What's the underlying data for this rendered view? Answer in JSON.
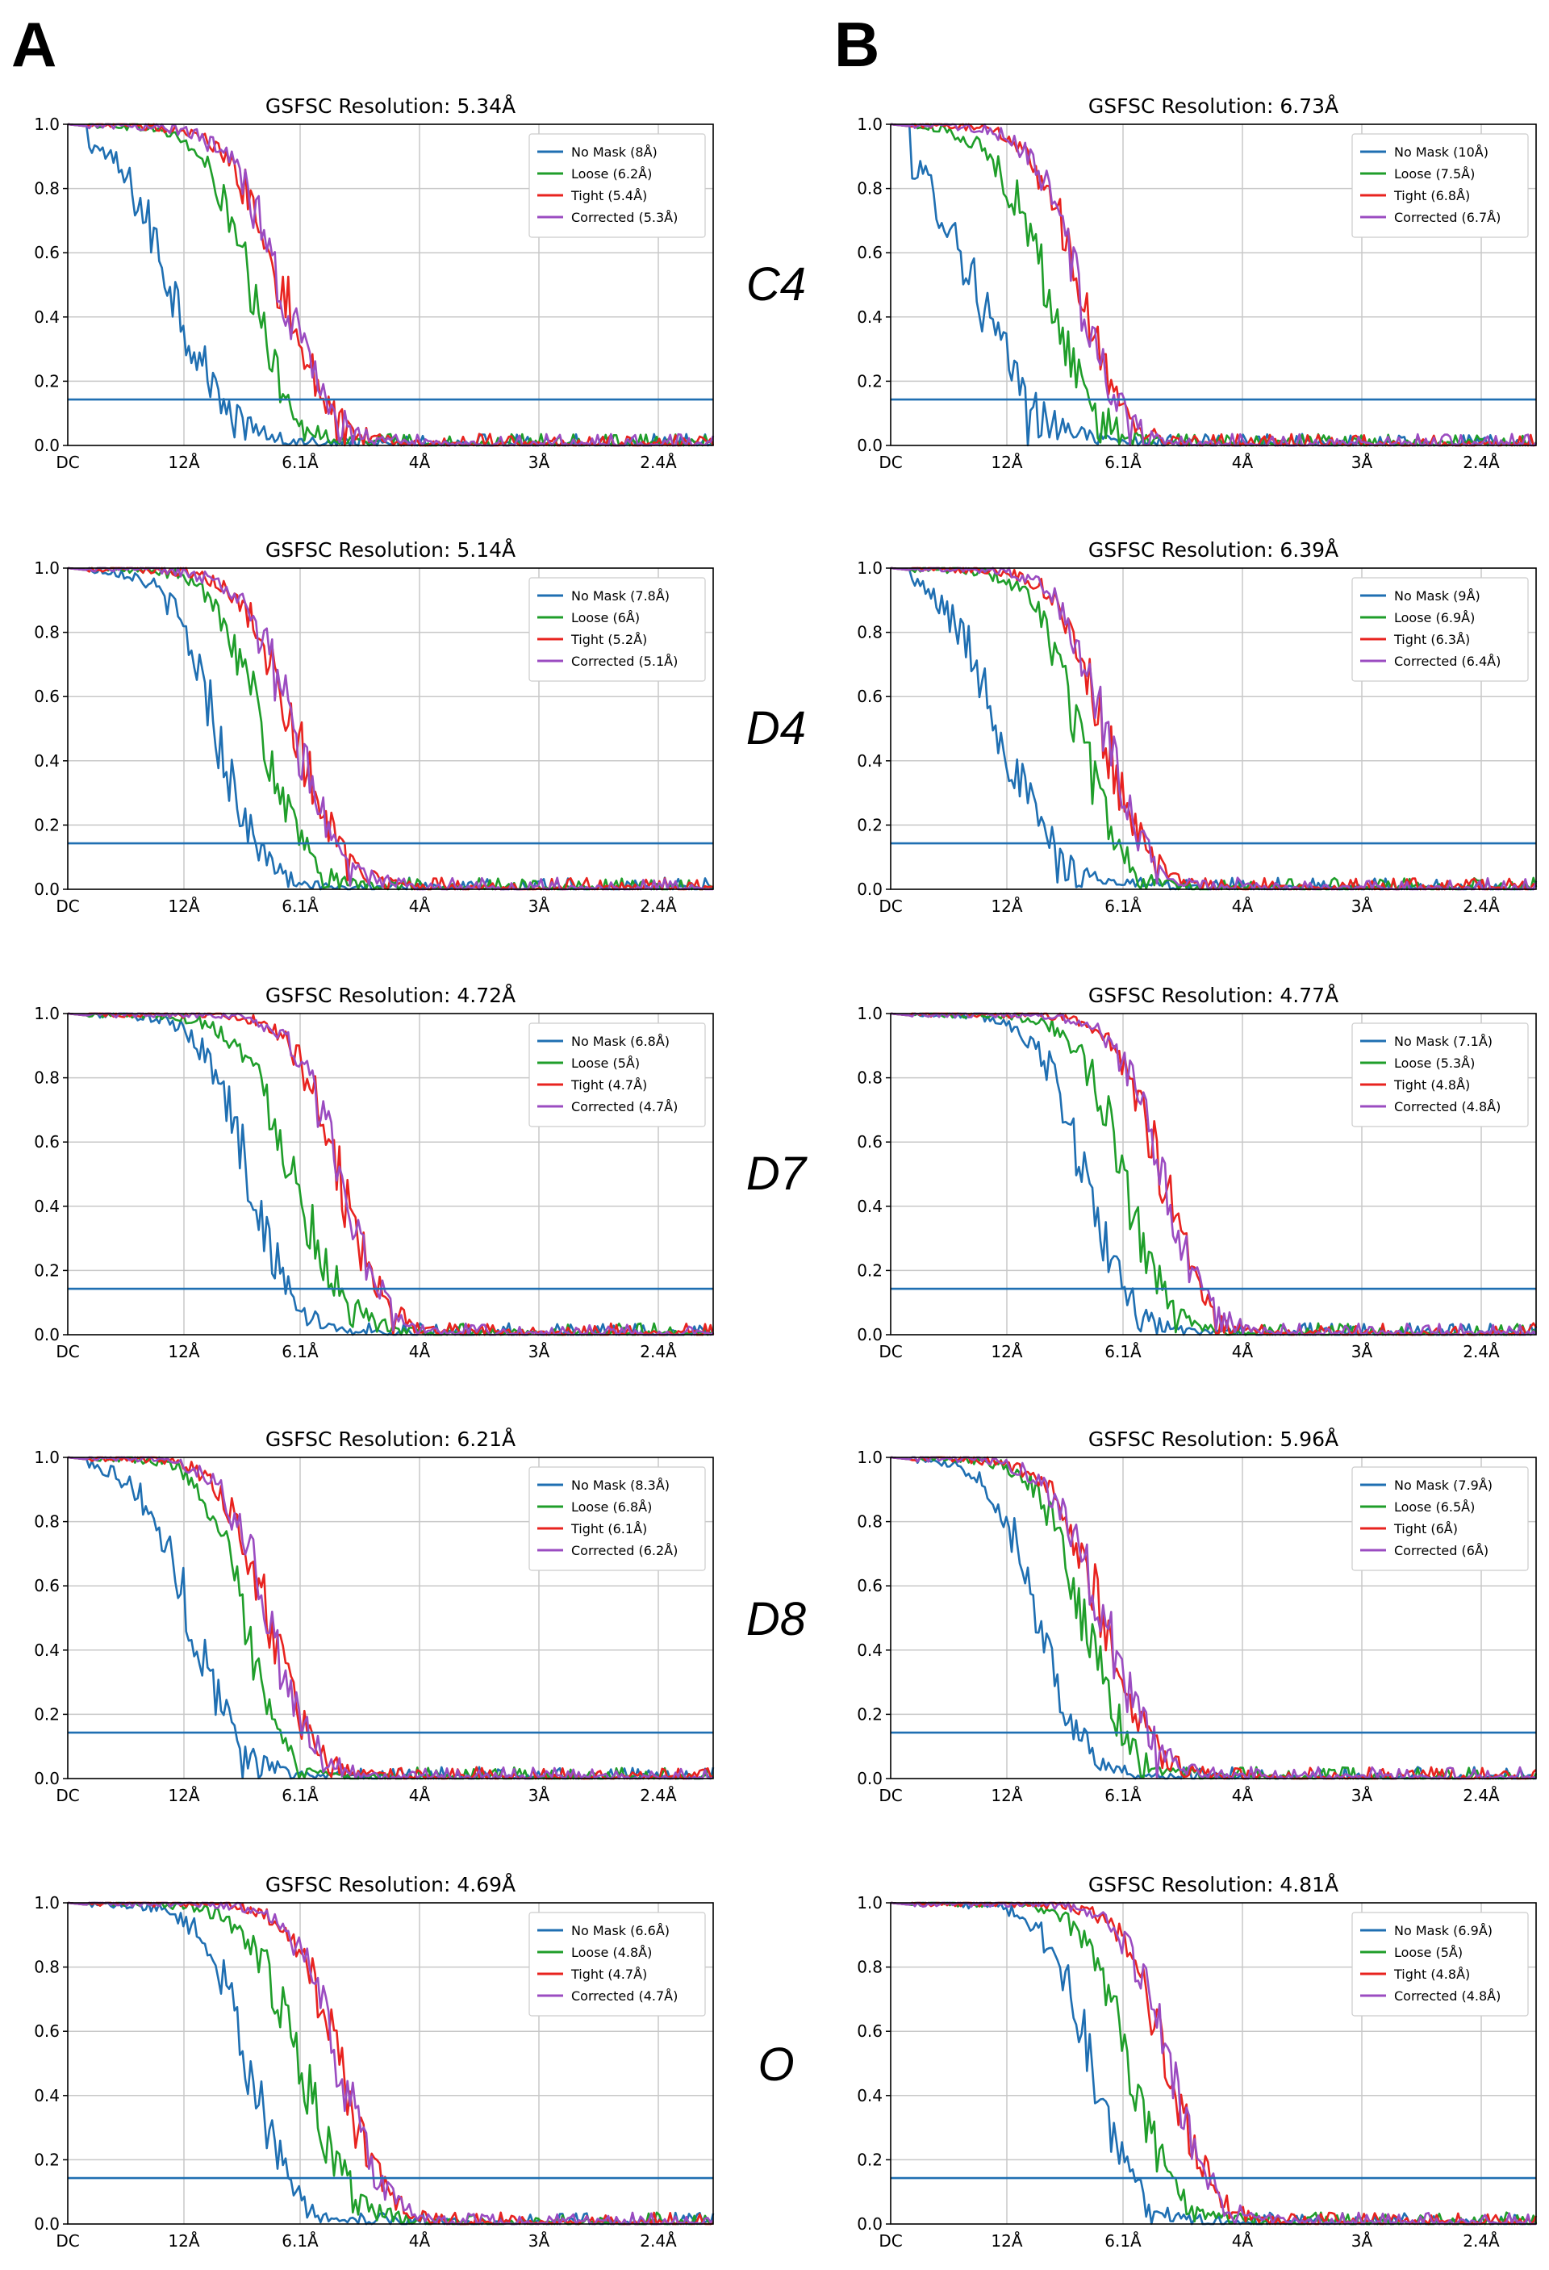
{
  "panel_labels": [
    "A",
    "B"
  ],
  "row_labels": [
    "C4",
    "D4",
    "D7",
    "D8",
    "O"
  ],
  "colors": {
    "no_mask": "#1f6fb2",
    "loose": "#1f9e2a",
    "tight": "#e8231f",
    "corrected": "#9b4cc1",
    "threshold": "#1f6fb2",
    "grid": "#c8c8c8",
    "axis": "#000000"
  },
  "chart_data": [
    {
      "type": "line",
      "title": "GSFSC Resolution: 5.34Å",
      "xlabel": "",
      "ylabel": "",
      "x_ticks": [
        "DC",
        "12Å",
        "6.1Å",
        "4Å",
        "3Å",
        "2.4Å"
      ],
      "y_ticks": [
        "0.0",
        "0.2",
        "0.4",
        "0.6",
        "0.8",
        "1.0"
      ],
      "ylim": [
        0,
        1.0
      ],
      "threshold": 0.143,
      "legend_position": "top-right",
      "series": [
        {
          "name": "No Mask (8Å)",
          "key": "no_mask",
          "half": 0.16,
          "width": 0.045
        },
        {
          "name": "Loose (6.2Å)",
          "key": "loose",
          "half": 0.28,
          "width": 0.035
        },
        {
          "name": "Tight (5.4Å)",
          "key": "tight",
          "half": 0.33,
          "width": 0.04
        },
        {
          "name": "Corrected (5.3Å)",
          "key": "corrected",
          "half": 0.33,
          "width": 0.04
        }
      ]
    },
    {
      "type": "line",
      "title": "GSFSC Resolution: 6.73Å",
      "xlabel": "",
      "ylabel": "",
      "x_ticks": [
        "DC",
        "12Å",
        "6.1Å",
        "4Å",
        "3Å",
        "2.4Å"
      ],
      "y_ticks": [
        "0.0",
        "0.2",
        "0.4",
        "0.6",
        "0.8",
        "1.0"
      ],
      "ylim": [
        0,
        1.0
      ],
      "threshold": 0.143,
      "legend_position": "top-right",
      "series": [
        {
          "name": "No Mask (10Å)",
          "key": "no_mask",
          "half": 0.13,
          "width": 0.05
        },
        {
          "name": "Loose (7.5Å)",
          "key": "loose",
          "half": 0.24,
          "width": 0.04
        },
        {
          "name": "Tight (6.8Å)",
          "key": "tight",
          "half": 0.29,
          "width": 0.035
        },
        {
          "name": "Corrected (6.7Å)",
          "key": "corrected",
          "half": 0.29,
          "width": 0.035
        }
      ]
    },
    {
      "type": "line",
      "title": "GSFSC Resolution: 5.14Å",
      "xlabel": "",
      "ylabel": "",
      "x_ticks": [
        "DC",
        "12Å",
        "6.1Å",
        "4Å",
        "3Å",
        "2.4Å"
      ],
      "y_ticks": [
        "0.0",
        "0.2",
        "0.4",
        "0.6",
        "0.8",
        "1.0"
      ],
      "ylim": [
        0,
        1.0
      ],
      "threshold": 0.143,
      "legend_position": "top-right",
      "series": [
        {
          "name": "No Mask (7.8Å)",
          "key": "no_mask",
          "half": 0.23,
          "width": 0.035
        },
        {
          "name": "Loose (6Å)",
          "key": "loose",
          "half": 0.3,
          "width": 0.035
        },
        {
          "name": "Tight (5.2Å)",
          "key": "tight",
          "half": 0.35,
          "width": 0.04
        },
        {
          "name": "Corrected (5.1Å)",
          "key": "corrected",
          "half": 0.35,
          "width": 0.04
        }
      ]
    },
    {
      "type": "line",
      "title": "GSFSC Resolution: 6.39Å",
      "xlabel": "",
      "ylabel": "",
      "x_ticks": [
        "DC",
        "12Å",
        "6.1Å",
        "4Å",
        "3Å",
        "2.4Å"
      ],
      "y_ticks": [
        "0.0",
        "0.2",
        "0.4",
        "0.6",
        "0.8",
        "1.0"
      ],
      "ylim": [
        0,
        1.0
      ],
      "threshold": 0.143,
      "legend_position": "top-right",
      "series": [
        {
          "name": "No Mask (9Å)",
          "key": "no_mask",
          "half": 0.17,
          "width": 0.045
        },
        {
          "name": "Loose (6.9Å)",
          "key": "loose",
          "half": 0.29,
          "width": 0.035
        },
        {
          "name": "Tight (6.3Å)",
          "key": "tight",
          "half": 0.33,
          "width": 0.035
        },
        {
          "name": "Corrected (6.4Å)",
          "key": "corrected",
          "half": 0.33,
          "width": 0.035
        }
      ]
    },
    {
      "type": "line",
      "title": "GSFSC Resolution: 4.72Å",
      "xlabel": "",
      "ylabel": "",
      "x_ticks": [
        "DC",
        "12Å",
        "6.1Å",
        "4Å",
        "3Å",
        "2.4Å"
      ],
      "y_ticks": [
        "0.0",
        "0.2",
        "0.4",
        "0.6",
        "0.8",
        "1.0"
      ],
      "ylim": [
        0,
        1.0
      ],
      "threshold": 0.143,
      "legend_position": "top-right",
      "series": [
        {
          "name": "No Mask (6.8Å)",
          "key": "no_mask",
          "half": 0.28,
          "width": 0.035
        },
        {
          "name": "Loose (5Å)",
          "key": "loose",
          "half": 0.35,
          "width": 0.04
        },
        {
          "name": "Tight (4.7Å)",
          "key": "tight",
          "half": 0.42,
          "width": 0.035
        },
        {
          "name": "Corrected (4.7Å)",
          "key": "corrected",
          "half": 0.42,
          "width": 0.035
        }
      ]
    },
    {
      "type": "line",
      "title": "GSFSC Resolution: 4.77Å",
      "xlabel": "",
      "ylabel": "",
      "x_ticks": [
        "DC",
        "12Å",
        "6.1Å",
        "4Å",
        "3Å",
        "2.4Å"
      ],
      "y_ticks": [
        "0.0",
        "0.2",
        "0.4",
        "0.6",
        "0.8",
        "1.0"
      ],
      "ylim": [
        0,
        1.0
      ],
      "threshold": 0.143,
      "legend_position": "top-right",
      "series": [
        {
          "name": "No Mask (7.1Å)",
          "key": "no_mask",
          "half": 0.3,
          "width": 0.035
        },
        {
          "name": "Loose (5.3Å)",
          "key": "loose",
          "half": 0.36,
          "width": 0.035
        },
        {
          "name": "Tight (4.8Å)",
          "key": "tight",
          "half": 0.42,
          "width": 0.035
        },
        {
          "name": "Corrected (4.8Å)",
          "key": "corrected",
          "half": 0.42,
          "width": 0.035
        }
      ]
    },
    {
      "type": "line",
      "title": "GSFSC Resolution: 6.21Å",
      "xlabel": "",
      "ylabel": "",
      "x_ticks": [
        "DC",
        "12Å",
        "6.1Å",
        "4Å",
        "3Å",
        "2.4Å"
      ],
      "y_ticks": [
        "0.0",
        "0.2",
        "0.4",
        "0.6",
        "0.8",
        "1.0"
      ],
      "ylim": [
        0,
        1.0
      ],
      "threshold": 0.143,
      "legend_position": "top-right",
      "series": [
        {
          "name": "No Mask (8.3Å)",
          "key": "no_mask",
          "half": 0.19,
          "width": 0.04
        },
        {
          "name": "Loose (6.8Å)",
          "key": "loose",
          "half": 0.27,
          "width": 0.03
        },
        {
          "name": "Tight (6.1Å)",
          "key": "tight",
          "half": 0.31,
          "width": 0.035
        },
        {
          "name": "Corrected (6.2Å)",
          "key": "corrected",
          "half": 0.31,
          "width": 0.035
        }
      ]
    },
    {
      "type": "line",
      "title": "GSFSC Resolution: 5.96Å",
      "xlabel": "",
      "ylabel": "",
      "x_ticks": [
        "DC",
        "12Å",
        "6.1Å",
        "4Å",
        "3Å",
        "2.4Å"
      ],
      "y_ticks": [
        "0.0",
        "0.2",
        "0.4",
        "0.6",
        "0.8",
        "1.0"
      ],
      "ylim": [
        0,
        1.0
      ],
      "threshold": 0.143,
      "legend_position": "top-right",
      "series": [
        {
          "name": "No Mask (7.9Å)",
          "key": "no_mask",
          "half": 0.23,
          "width": 0.035
        },
        {
          "name": "Loose (6.5Å)",
          "key": "loose",
          "half": 0.3,
          "width": 0.035
        },
        {
          "name": "Tight (6Å)",
          "key": "tight",
          "half": 0.33,
          "width": 0.04
        },
        {
          "name": "Corrected (6Å)",
          "key": "corrected",
          "half": 0.33,
          "width": 0.04
        }
      ]
    },
    {
      "type": "line",
      "title": "GSFSC Resolution: 4.69Å",
      "xlabel": "",
      "ylabel": "",
      "x_ticks": [
        "DC",
        "12Å",
        "6.1Å",
        "4Å",
        "3Å",
        "2.4Å"
      ],
      "y_ticks": [
        "0.0",
        "0.2",
        "0.4",
        "0.6",
        "0.8",
        "1.0"
      ],
      "ylim": [
        0,
        1.0
      ],
      "threshold": 0.143,
      "legend_position": "top-right",
      "series": [
        {
          "name": "No Mask (6.6Å)",
          "key": "no_mask",
          "half": 0.28,
          "width": 0.035
        },
        {
          "name": "Loose (4.8Å)",
          "key": "loose",
          "half": 0.36,
          "width": 0.04
        },
        {
          "name": "Tight (4.7Å)",
          "key": "tight",
          "half": 0.42,
          "width": 0.035
        },
        {
          "name": "Corrected (4.7Å)",
          "key": "corrected",
          "half": 0.42,
          "width": 0.035
        }
      ]
    },
    {
      "type": "line",
      "title": "GSFSC Resolution: 4.81Å",
      "xlabel": "",
      "ylabel": "",
      "x_ticks": [
        "DC",
        "12Å",
        "6.1Å",
        "4Å",
        "3Å",
        "2.4Å"
      ],
      "y_ticks": [
        "0.0",
        "0.2",
        "0.4",
        "0.6",
        "0.8",
        "1.0"
      ],
      "ylim": [
        0,
        1.0
      ],
      "threshold": 0.143,
      "legend_position": "top-right",
      "series": [
        {
          "name": "No Mask (6.9Å)",
          "key": "no_mask",
          "half": 0.31,
          "width": 0.035
        },
        {
          "name": "Loose (5Å)",
          "key": "loose",
          "half": 0.37,
          "width": 0.035
        },
        {
          "name": "Tight (4.8Å)",
          "key": "tight",
          "half": 0.43,
          "width": 0.035
        },
        {
          "name": "Corrected (4.8Å)",
          "key": "corrected",
          "half": 0.43,
          "width": 0.035
        }
      ]
    }
  ]
}
